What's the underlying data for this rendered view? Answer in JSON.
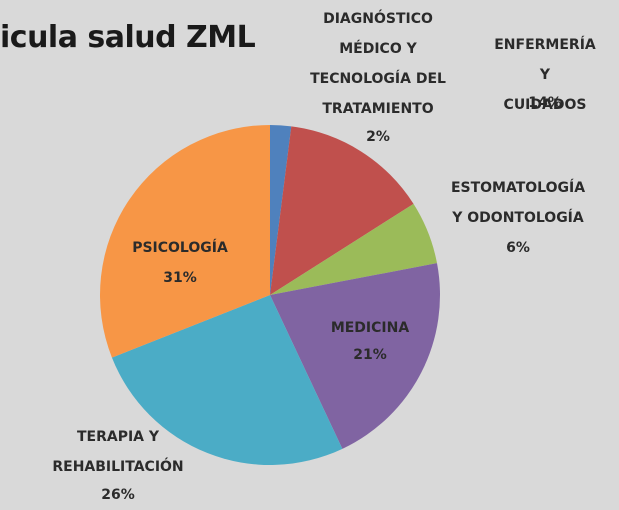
{
  "chart_data": {
    "type": "pie",
    "title": "icula salud ZML",
    "categories": [
      "DIAGNÓSTICO\nMÉDICO Y\nTECNOLOGÍA DEL\nTRATAMIENTO",
      "ENFERMERÍA Y\nCUIDADOS",
      "ESTOMATOLOGÍA\nY ODONTOLOGÍA",
      "MEDICINA",
      "TERAPIA Y\nREHABILITACIÓN",
      "PSICOLOGÍA"
    ],
    "values": [
      2,
      14,
      6,
      21,
      26,
      31
    ],
    "value_labels": [
      "2%",
      "14%",
      "6%",
      "21%",
      "26%",
      "31%"
    ],
    "colors": [
      "#4f81bd",
      "#c0504d",
      "#9bbb59",
      "#8064a2",
      "#4bacc6",
      "#f79646"
    ]
  }
}
